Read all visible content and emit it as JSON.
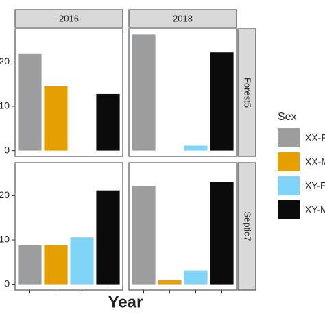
{
  "chart_data": {
    "type": "bar",
    "xlabel": "Year",
    "legend_title": "Sex",
    "columns": [
      "2016",
      "2018"
    ],
    "rows": [
      "Forest5",
      "Septic7"
    ],
    "series": [
      {
        "name": "XX-F",
        "color": "#9b9d9e",
        "values": [
          21.8,
          26.2,
          8.8,
          22.2
        ]
      },
      {
        "name": "XX-M",
        "color": "#e69f00",
        "values": [
          14.5,
          0,
          8.8,
          0.9
        ]
      },
      {
        "name": "XY-F",
        "color": "#80d4f8",
        "values": [
          0,
          1.1,
          10.6,
          3.1
        ]
      },
      {
        "name": "XY-M",
        "color": "#0b0b0b",
        "values": [
          12.8,
          22.2,
          21.2,
          23.1
        ]
      }
    ],
    "ylim": [
      -1.3,
      27.5
    ],
    "yticks": [
      0,
      10,
      20
    ]
  }
}
